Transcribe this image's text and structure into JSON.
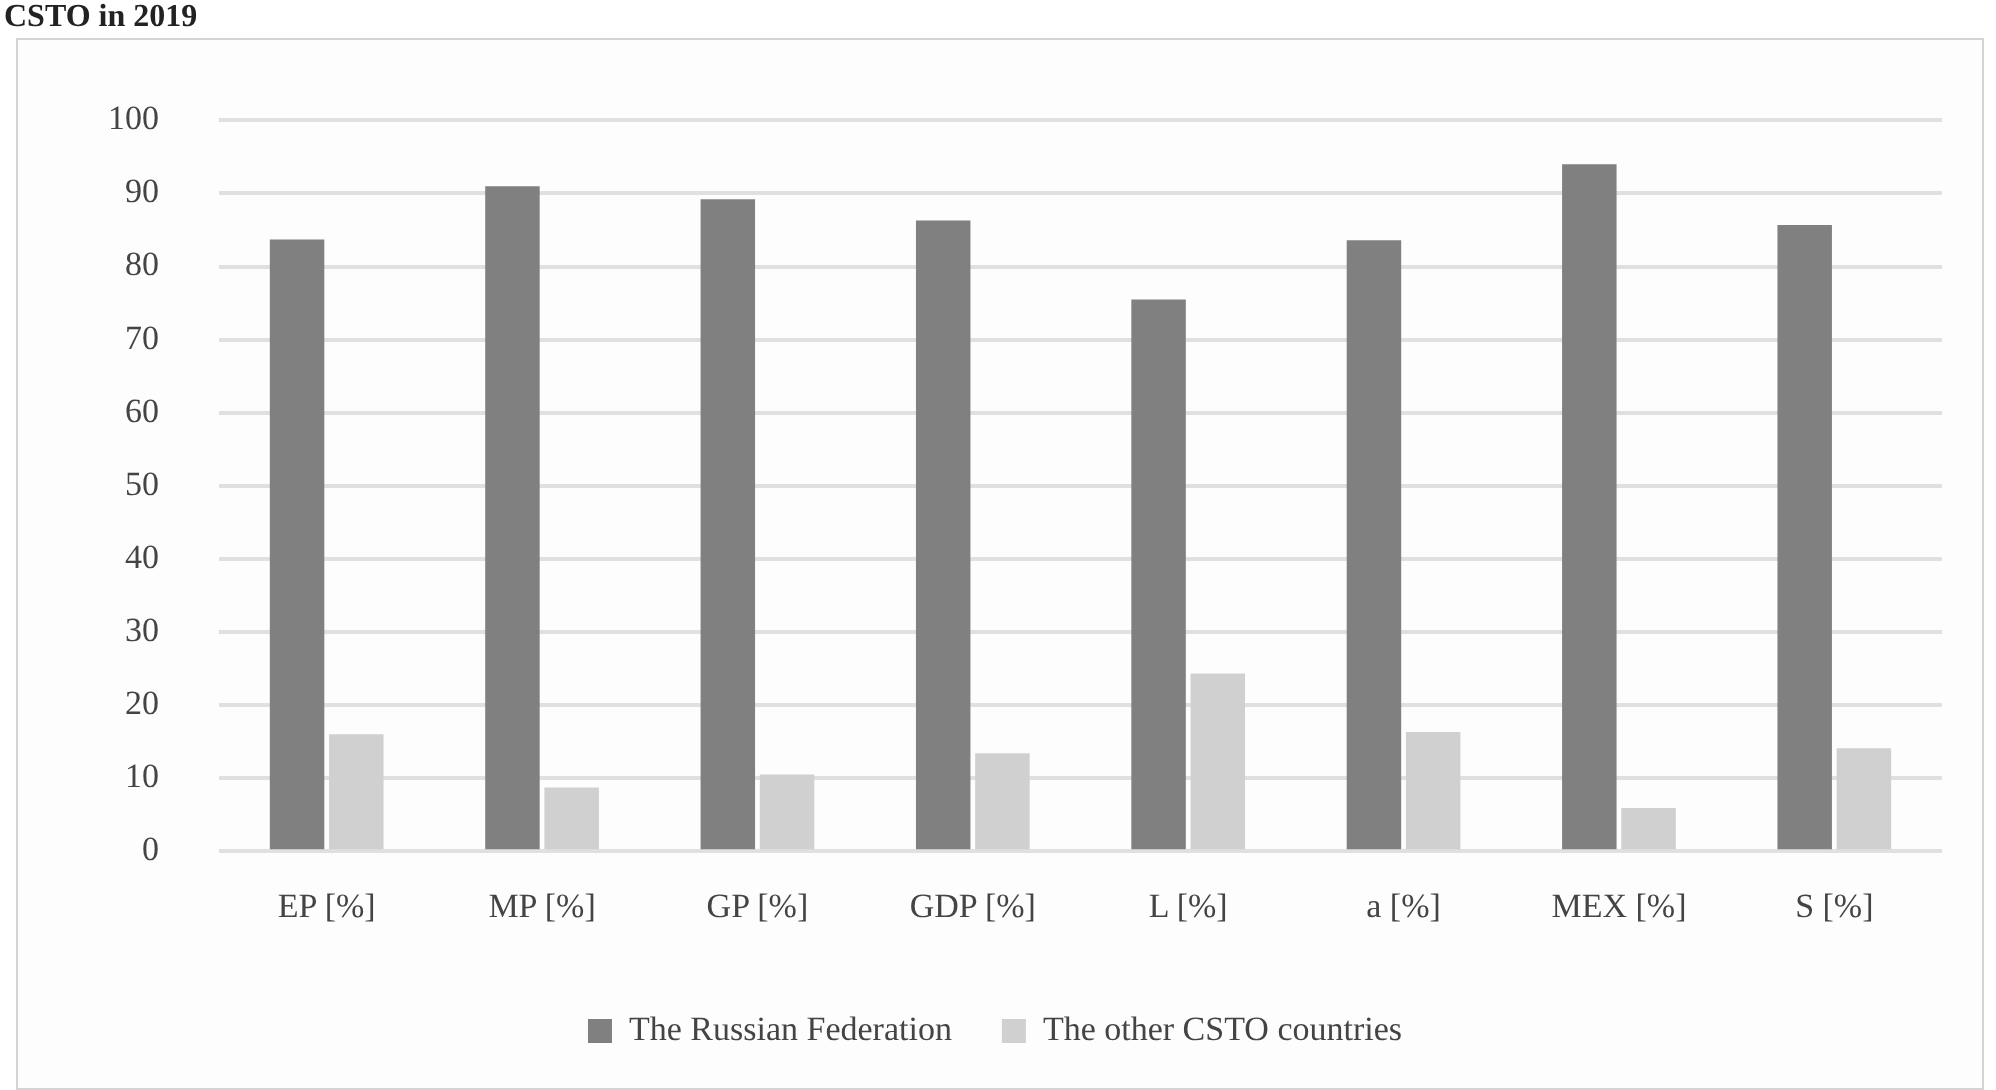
{
  "chart_data": {
    "type": "bar",
    "title": "CSTO in 2019",
    "categories": [
      "EP [%]",
      "MP [%]",
      "GP [%]",
      "GDP [%]",
      "L [%]",
      "a [%]",
      "MEX [%]",
      "S [%]"
    ],
    "series": [
      {
        "name": "The Russian Federation",
        "color": "#808080",
        "values": [
          83.7,
          91.0,
          89.2,
          86.3,
          75.5,
          83.6,
          94.0,
          85.7
        ]
      },
      {
        "name": "The other CSTO countries",
        "color": "#d0d0d0",
        "values": [
          16.0,
          8.7,
          10.5,
          13.4,
          24.3,
          16.3,
          5.9,
          14.1
        ]
      }
    ],
    "ylim": [
      0,
      100
    ],
    "yticks": [
      0,
      10,
      20,
      30,
      40,
      50,
      60,
      70,
      80,
      90,
      100
    ],
    "grid": "y",
    "legend": "bottom"
  }
}
